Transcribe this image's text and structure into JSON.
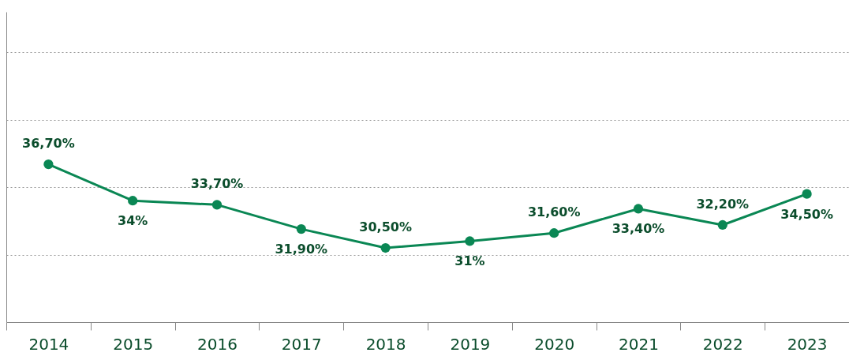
{
  "chart_data": {
    "type": "line",
    "categories": [
      "2014",
      "2015",
      "2016",
      "2017",
      "2018",
      "2019",
      "2020",
      "2021",
      "2022",
      "2023"
    ],
    "series": [
      {
        "color": "#0a8754",
        "values": [
          36.7,
          34,
          33.7,
          31.9,
          30.5,
          31,
          31.6,
          33.4,
          32.2,
          34.5
        ],
        "value_labels": [
          "36,70%",
          "34%",
          "33,70%",
          "31,90%",
          "30,50%",
          "31%",
          "31,60%",
          "33,40%",
          "32,20%",
          "34,50%"
        ]
      }
    ],
    "ylim": [
      25,
      48
    ],
    "yticks": [
      {
        "value": 30,
        "label": null
      },
      {
        "value": 35,
        "label": null
      },
      {
        "value": 40,
        "label": null
      },
      {
        "value": 45,
        "label": null
      }
    ],
    "tick_labels": "x",
    "grid": "y",
    "marker": "circle",
    "line_style": "solid"
  }
}
